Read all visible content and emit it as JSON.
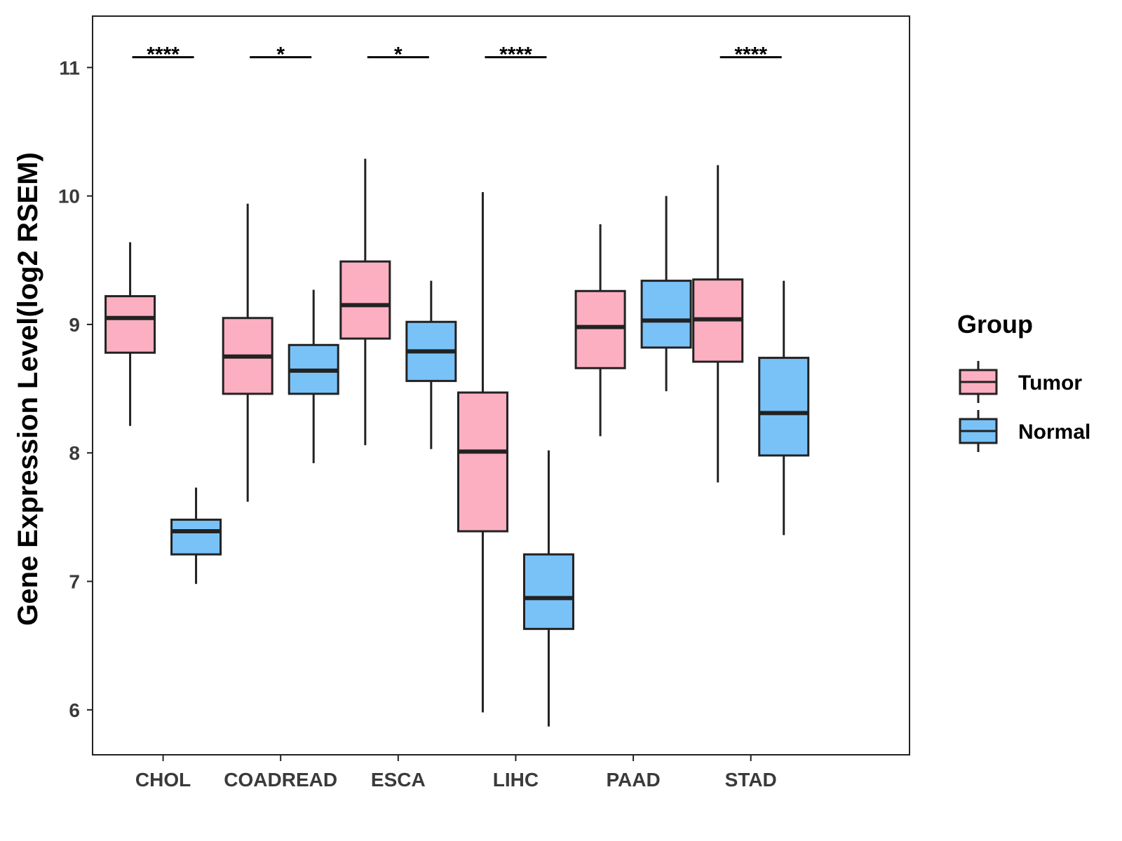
{
  "chart_data": {
    "type": "boxplot",
    "title": "",
    "xlabel": "",
    "ylabel": "Gene Expression Level(log2 RSEM)",
    "ylim": [
      5.65,
      11.4
    ],
    "yticks": [
      6,
      7,
      8,
      9,
      10,
      11
    ],
    "grid": false,
    "legend": {
      "title": "Group",
      "position": "right"
    },
    "categories": [
      "CHOL",
      "COADREAD",
      "ESCA",
      "LIHC",
      "PAAD",
      "STAD"
    ],
    "series": [
      {
        "name": "Tumor",
        "color": "#FBAFC1",
        "boxes": [
          {
            "category": "CHOL",
            "min": 8.21,
            "q1": 8.78,
            "median": 9.05,
            "q3": 9.22,
            "max": 9.64
          },
          {
            "category": "COADREAD",
            "min": 7.62,
            "q1": 8.46,
            "median": 8.75,
            "q3": 9.05,
            "max": 9.94
          },
          {
            "category": "ESCA",
            "min": 8.06,
            "q1": 8.89,
            "median": 9.15,
            "q3": 9.49,
            "max": 10.29
          },
          {
            "category": "LIHC",
            "min": 5.98,
            "q1": 7.39,
            "median": 8.01,
            "q3": 8.47,
            "max": 10.03
          },
          {
            "category": "PAAD",
            "min": 8.13,
            "q1": 8.66,
            "median": 8.98,
            "q3": 9.26,
            "max": 9.78
          },
          {
            "category": "STAD",
            "min": 7.77,
            "q1": 8.71,
            "median": 9.04,
            "q3": 9.35,
            "max": 10.24
          }
        ]
      },
      {
        "name": "Normal",
        "color": "#79C2F8",
        "boxes": [
          {
            "category": "CHOL",
            "min": 6.98,
            "q1": 7.21,
            "median": 7.39,
            "q3": 7.48,
            "max": 7.73
          },
          {
            "category": "COADREAD",
            "min": 7.92,
            "q1": 8.46,
            "median": 8.64,
            "q3": 8.84,
            "max": 9.27
          },
          {
            "category": "ESCA",
            "min": 8.03,
            "q1": 8.56,
            "median": 8.79,
            "q3": 9.02,
            "max": 9.34
          },
          {
            "category": "LIHC",
            "min": 5.87,
            "q1": 6.63,
            "median": 6.87,
            "q3": 7.21,
            "max": 8.02
          },
          {
            "category": "PAAD",
            "min": 8.48,
            "q1": 8.82,
            "median": 9.03,
            "q3": 9.34,
            "max": 10.0
          },
          {
            "category": "STAD",
            "min": 7.36,
            "q1": 7.98,
            "median": 8.31,
            "q3": 8.74,
            "max": 9.34
          }
        ]
      }
    ],
    "significance": [
      {
        "category": "CHOL",
        "label": "****"
      },
      {
        "category": "COADREAD",
        "label": "*"
      },
      {
        "category": "ESCA",
        "label": "*"
      },
      {
        "category": "LIHC",
        "label": "****"
      },
      {
        "category": "PAAD",
        "label": ""
      },
      {
        "category": "STAD",
        "label": "****"
      }
    ],
    "significance_bar_value": 11.08
  }
}
